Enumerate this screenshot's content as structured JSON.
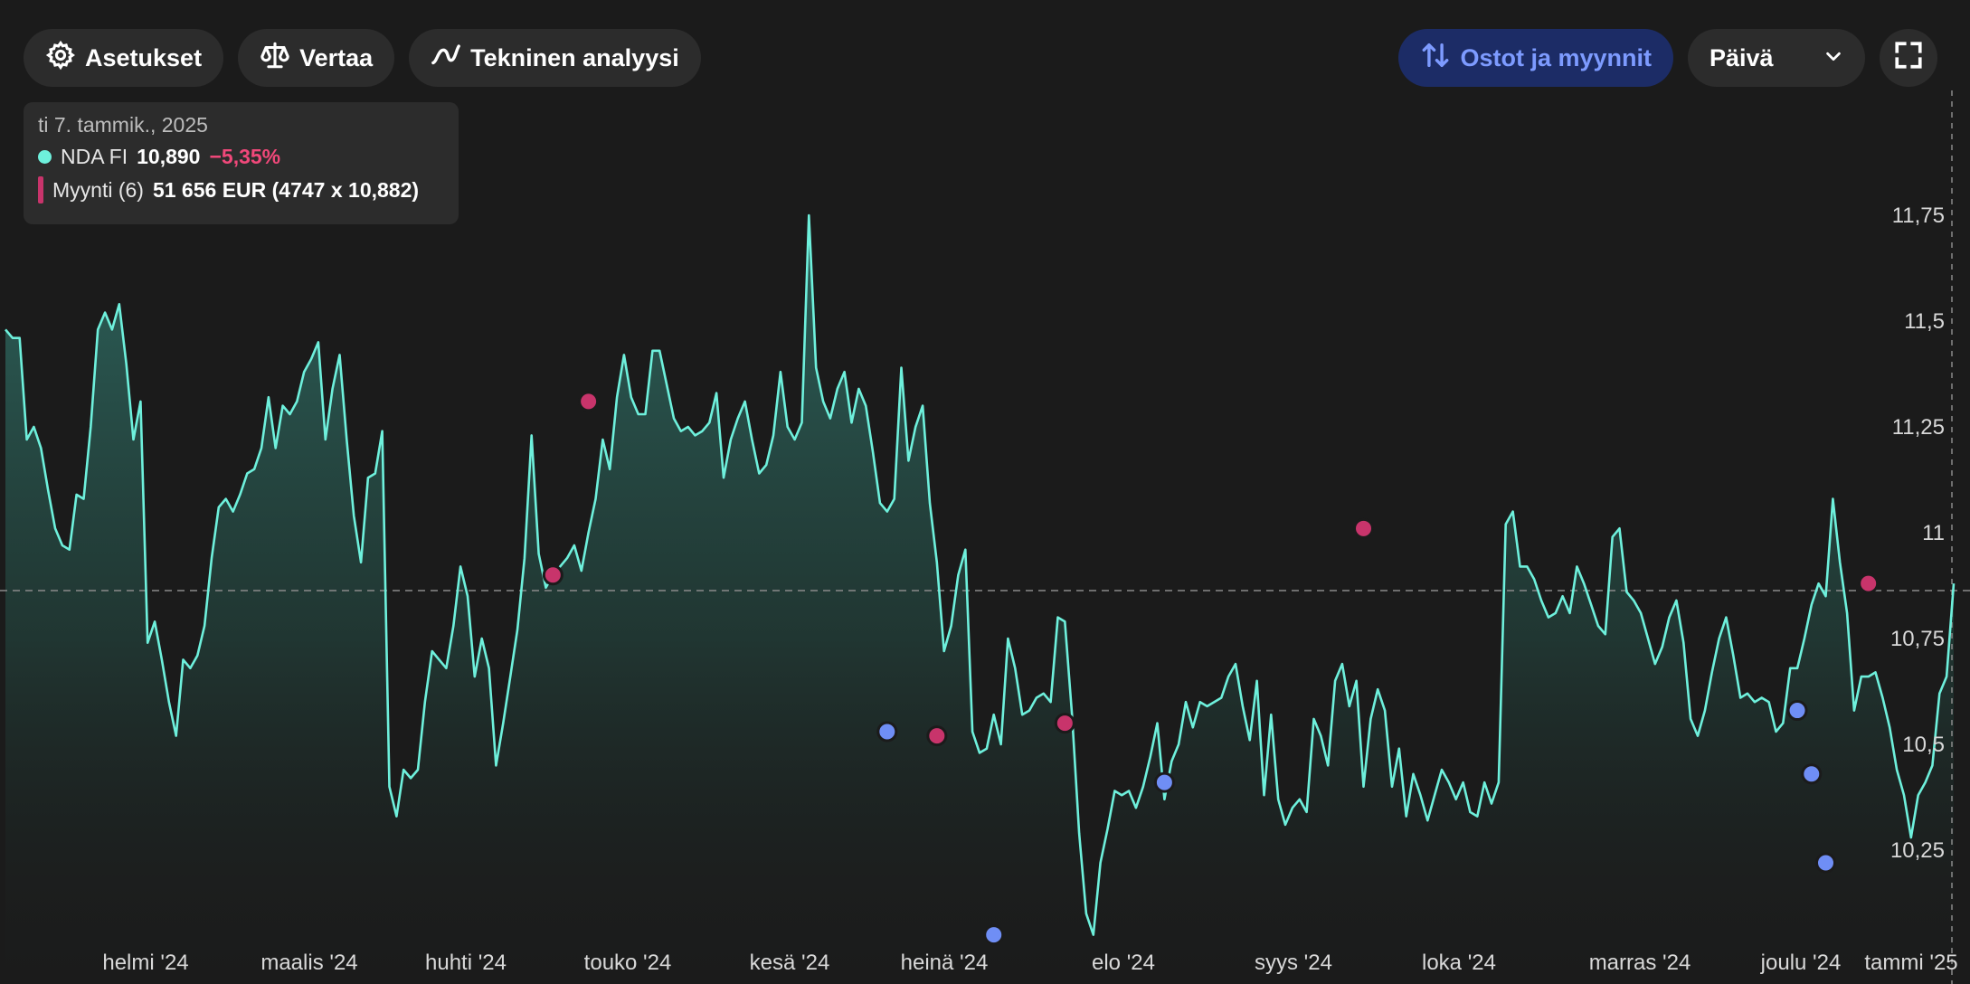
{
  "toolbar": {
    "settings_label": "Asetukset",
    "compare_label": "Vertaa",
    "analysis_label": "Tekninen analyysi",
    "trades_label": "Ostot ja myynnit",
    "period_value": "Päivä"
  },
  "tooltip": {
    "date": "ti 7. tammik., 2025",
    "instrument": "NDA FI",
    "price": "10,890",
    "change": "−5,35%",
    "trade_label": "Myynti (6)",
    "trade_detail": "51 656 EUR (4747 x 10,882)"
  },
  "colors": {
    "line": "#6ef0dc",
    "sell": "#c8346b",
    "buy": "#6f8ef5",
    "accent": "#7d9bff"
  },
  "chart_data": {
    "type": "line",
    "ylim": [
      10.0,
      12.0
    ],
    "y_ticks": [
      "11,75",
      "11,5",
      "11,25",
      "11",
      "10,75",
      "10,5",
      "10,25"
    ],
    "y_tick_values": [
      11.75,
      11.5,
      11.25,
      11.0,
      10.75,
      10.5,
      10.25
    ],
    "x_labels": [
      "helmi '24",
      "maalis '24",
      "huhti '24",
      "touko '24",
      "kesä '24",
      "heinä '24",
      "elo '24",
      "syys '24",
      "loka '24",
      "marras '24",
      "joulu '24",
      "tammi '25"
    ],
    "reference_price": 10.89,
    "series": [
      {
        "values": [
          11.48,
          11.46,
          11.46,
          11.22,
          11.25,
          11.2,
          11.1,
          11.01,
          10.97,
          10.96,
          11.09,
          11.08,
          11.25,
          11.48,
          11.52,
          11.48,
          11.54,
          11.4,
          11.22,
          11.31,
          10.74,
          10.79,
          10.7,
          10.6,
          10.52,
          10.7,
          10.68,
          10.71,
          10.78,
          10.94,
          11.06,
          11.08,
          11.05,
          11.09,
          11.14,
          11.15,
          11.2,
          11.32,
          11.2,
          11.3,
          11.28,
          11.31,
          11.38,
          11.41,
          11.45,
          11.22,
          11.34,
          11.42,
          11.22,
          11.04,
          10.93,
          11.13,
          11.14,
          11.24,
          10.4,
          10.33,
          10.44,
          10.42,
          10.44,
          10.6,
          10.72,
          10.7,
          10.68,
          10.78,
          10.92,
          10.85,
          10.66,
          10.75,
          10.68,
          10.45,
          10.55,
          10.66,
          10.77,
          10.94,
          11.23,
          10.95,
          10.87,
          10.9,
          10.92,
          10.94,
          10.97,
          10.91,
          11.0,
          11.08,
          11.22,
          11.15,
          11.32,
          11.42,
          11.32,
          11.28,
          11.28,
          11.43,
          11.43,
          11.35,
          11.27,
          11.24,
          11.25,
          11.23,
          11.24,
          11.26,
          11.33,
          11.13,
          11.22,
          11.27,
          11.31,
          11.22,
          11.14,
          11.16,
          11.23,
          11.38,
          11.25,
          11.22,
          11.26,
          11.75,
          11.39,
          11.31,
          11.27,
          11.34,
          11.38,
          11.26,
          11.34,
          11.3,
          11.19,
          11.07,
          11.05,
          11.08,
          11.39,
          11.17,
          11.25,
          11.3,
          11.07,
          10.93,
          10.72,
          10.78,
          10.9,
          10.96,
          10.53,
          10.48,
          10.49,
          10.57,
          10.5,
          10.75,
          10.68,
          10.57,
          10.58,
          10.61,
          10.62,
          10.6,
          10.8,
          10.79,
          10.57,
          10.29,
          10.1,
          10.05,
          10.22,
          10.3,
          10.39,
          10.38,
          10.39,
          10.35,
          10.4,
          10.47,
          10.55,
          10.37,
          10.46,
          10.5,
          10.6,
          10.54,
          10.6,
          10.59,
          10.6,
          10.61,
          10.66,
          10.69,
          10.59,
          10.51,
          10.65,
          10.38,
          10.57,
          10.37,
          10.31,
          10.35,
          10.37,
          10.34,
          10.56,
          10.52,
          10.45,
          10.65,
          10.69,
          10.59,
          10.65,
          10.4,
          10.56,
          10.63,
          10.58,
          10.4,
          10.49,
          10.33,
          10.43,
          10.38,
          10.32,
          10.38,
          10.44,
          10.41,
          10.37,
          10.41,
          10.34,
          10.33,
          10.41,
          10.36,
          10.41,
          11.02,
          11.05,
          10.92,
          10.92,
          10.89,
          10.84,
          10.8,
          10.81,
          10.85,
          10.81,
          10.92,
          10.88,
          10.83,
          10.78,
          10.76,
          10.99,
          11.01,
          10.86,
          10.84,
          10.81,
          10.75,
          10.69,
          10.73,
          10.8,
          10.84,
          10.74,
          10.56,
          10.52,
          10.58,
          10.67,
          10.75,
          10.8,
          10.71,
          10.61,
          10.62,
          10.6,
          10.61,
          10.6,
          10.53,
          10.55,
          10.68,
          10.68,
          10.75,
          10.83,
          10.88,
          10.85,
          11.08,
          10.93,
          10.81,
          10.58,
          10.66,
          10.66,
          10.67,
          10.61,
          10.54,
          10.44,
          10.38,
          10.28,
          10.38,
          10.41,
          10.45,
          10.62,
          10.66,
          10.88
        ]
      }
    ],
    "markers": [
      {
        "type": "sell",
        "index": 77,
        "value": 10.9
      },
      {
        "type": "sell",
        "index": 82,
        "value": 11.31
      },
      {
        "type": "sell",
        "index": 131,
        "value": 10.52
      },
      {
        "type": "sell",
        "index": 149,
        "value": 10.55
      },
      {
        "type": "sell",
        "index": 191,
        "value": 11.01
      },
      {
        "type": "sell",
        "index": 262,
        "value": 10.88
      },
      {
        "type": "buy",
        "index": 124,
        "value": 10.53
      },
      {
        "type": "buy",
        "index": 139,
        "value": 10.05
      },
      {
        "type": "buy",
        "index": 163,
        "value": 10.41
      },
      {
        "type": "buy",
        "index": 252,
        "value": 10.58
      },
      {
        "type": "buy",
        "index": 254,
        "value": 10.43
      },
      {
        "type": "buy",
        "index": 256,
        "value": 10.22
      }
    ]
  }
}
